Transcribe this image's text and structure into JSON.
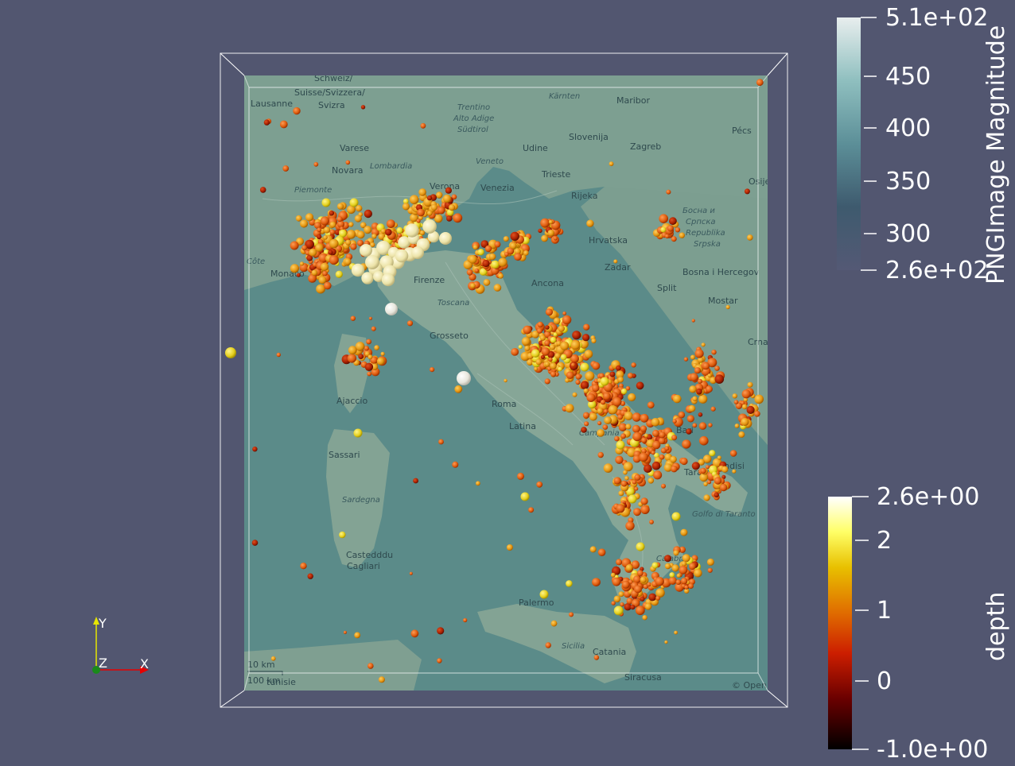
{
  "colorbars": {
    "image_magnitude": {
      "title": "PNGImage Magnitude",
      "ticks": [
        "5.1e+02",
        "450",
        "400",
        "350",
        "300",
        "2.6e+02"
      ],
      "colors": [
        "#e6ecec",
        "#8cbcbc",
        "#5b8f97",
        "#3f5d70",
        "#3a4258",
        "#545975"
      ]
    },
    "depth": {
      "title": "depth",
      "ticks": [
        "2.6e+00",
        "2",
        "1",
        "0",
        "-1.0e+00"
      ],
      "colors": [
        "#ffffff",
        "#ffff55",
        "#e8c400",
        "#e07800",
        "#cc2200",
        "#880000",
        "#000000"
      ]
    }
  },
  "axes_triad": {
    "y": "Y",
    "z": "Z",
    "x": "X"
  },
  "map": {
    "labels": [
      "Schweiz/",
      "Suisse/Svizzera/",
      "Svizra",
      "Lausanne",
      "Kärnten",
      "Maribor",
      "Pécs",
      "Trentino",
      "Alto Adige",
      "Südtirol",
      "Slovenija",
      "Zagreb",
      "Udine",
      "Varese",
      "Lombardia",
      "Veneto",
      "Novara",
      "Verona",
      "Venezia",
      "Trieste",
      "Rijeka",
      "Osije",
      "Piemonte",
      "Hrvatska",
      "Босна и",
      "Српска",
      "Republika",
      "Srpska",
      "Zadar",
      "Bosna i Hercegov",
      "Firenze",
      "Ancona",
      "Toscana",
      "Split",
      "Mostar",
      "Grosseto",
      "Crna",
      "Ajaccio",
      "Roma",
      "Latina",
      "Campania",
      "Sassari",
      "Sardegna",
      "Bari",
      "Taranto",
      "Brindisi",
      "Castedddu",
      "Cagliari",
      "Calabria",
      "Palermo",
      "Sicilia",
      "Catania",
      "Siracusa",
      "Golfo di Taranto",
      "Monaco",
      "Côte",
      "tunisie",
      "10 km",
      "100 km",
      "© Open"
    ]
  }
}
